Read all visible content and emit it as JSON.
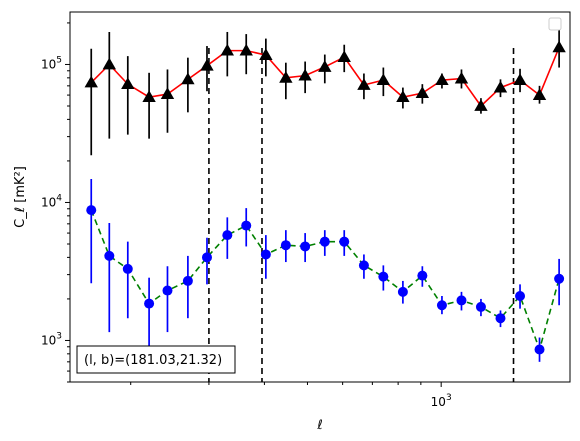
{
  "chart_data": {
    "type": "line",
    "title": "",
    "xlabel": "ℓ",
    "ylabel": "C_ℓ  [mK²]",
    "xscale": "log",
    "yscale": "log",
    "xlim": [
      146,
      1950
    ],
    "ylim": [
      500,
      240000
    ],
    "grid": false,
    "legend": {
      "placement": "top-right",
      "entries": []
    },
    "xticks": [
      {
        "value": 1000,
        "label": "10",
        "exp": "3"
      }
    ],
    "yticks": [
      {
        "value": 1000,
        "label": "10",
        "exp": "3"
      },
      {
        "value": 10000,
        "label": "10",
        "exp": "4"
      },
      {
        "value": 100000,
        "label": "10",
        "exp": "5"
      }
    ],
    "vlines": [
      300,
      395,
      1455
    ],
    "annotation": "(l, b)=(181.03,21.32)",
    "series": [
      {
        "line_color": "#ff0000",
        "marker_color": "#000000",
        "errorbar_color": "#000000",
        "marker": "triangle",
        "line_style": "solid",
        "points": [
          {
            "x": 163,
            "y": 74000,
            "yerr_low": 22000,
            "yerr_high": 130000
          },
          {
            "x": 179,
            "y": 100000,
            "yerr_low": 29000,
            "yerr_high": 172000
          },
          {
            "x": 197,
            "y": 72000,
            "yerr_low": 31000,
            "yerr_high": 115000
          },
          {
            "x": 220,
            "y": 58000,
            "yerr_low": 29000,
            "yerr_high": 87000
          },
          {
            "x": 242,
            "y": 61000,
            "yerr_low": 32000,
            "yerr_high": 92000
          },
          {
            "x": 269,
            "y": 78000,
            "yerr_low": 45000,
            "yerr_high": 112000
          },
          {
            "x": 297,
            "y": 98000,
            "yerr_low": 64000,
            "yerr_high": 136000
          },
          {
            "x": 330,
            "y": 126000,
            "yerr_low": 82000,
            "yerr_high": 172000
          },
          {
            "x": 364,
            "y": 126000,
            "yerr_low": 85000,
            "yerr_high": 166000
          },
          {
            "x": 403,
            "y": 117000,
            "yerr_low": 82000,
            "yerr_high": 154000
          },
          {
            "x": 447,
            "y": 80000,
            "yerr_low": 56000,
            "yerr_high": 103000
          },
          {
            "x": 494,
            "y": 83000,
            "yerr_low": 62000,
            "yerr_high": 105000
          },
          {
            "x": 547,
            "y": 96000,
            "yerr_low": 73000,
            "yerr_high": 118000
          },
          {
            "x": 605,
            "y": 113000,
            "yerr_low": 88000,
            "yerr_high": 139000
          },
          {
            "x": 670,
            "y": 71000,
            "yerr_low": 56000,
            "yerr_high": 86000
          },
          {
            "x": 741,
            "y": 77000,
            "yerr_low": 59000,
            "yerr_high": 95000
          },
          {
            "x": 820,
            "y": 58000,
            "yerr_low": 48000,
            "yerr_high": 68000
          },
          {
            "x": 907,
            "y": 62000,
            "yerr_low": 52000,
            "yerr_high": 72000
          },
          {
            "x": 1004,
            "y": 77000,
            "yerr_low": 67000,
            "yerr_high": 86000
          },
          {
            "x": 1111,
            "y": 79000,
            "yerr_low": 67000,
            "yerr_high": 92000
          },
          {
            "x": 1229,
            "y": 50000,
            "yerr_low": 44000,
            "yerr_high": 57000
          },
          {
            "x": 1360,
            "y": 68000,
            "yerr_low": 58000,
            "yerr_high": 78000
          },
          {
            "x": 1505,
            "y": 77000,
            "yerr_low": 63000,
            "yerr_high": 93000
          },
          {
            "x": 1665,
            "y": 60000,
            "yerr_low": 52000,
            "yerr_high": 70000
          },
          {
            "x": 1843,
            "y": 133000,
            "yerr_low": 95000,
            "yerr_high": 182000
          }
        ]
      },
      {
        "line_color": "#008000",
        "marker_color": "#0000ff",
        "errorbar_color": "#0000ff",
        "marker": "circle",
        "line_style": "dashed",
        "points": [
          {
            "x": 163,
            "y": 8800,
            "yerr_low": 2600,
            "yerr_high": 14800
          },
          {
            "x": 179,
            "y": 4100,
            "yerr_low": 1150,
            "yerr_high": 7100
          },
          {
            "x": 197,
            "y": 3300,
            "yerr_low": 1450,
            "yerr_high": 5200
          },
          {
            "x": 220,
            "y": 1850,
            "yerr_low": 880,
            "yerr_high": 2850
          },
          {
            "x": 242,
            "y": 2300,
            "yerr_low": 1150,
            "yerr_high": 3450
          },
          {
            "x": 269,
            "y": 2700,
            "yerr_low": 1450,
            "yerr_high": 4100
          },
          {
            "x": 297,
            "y": 4000,
            "yerr_low": 2550,
            "yerr_high": 5550
          },
          {
            "x": 330,
            "y": 5800,
            "yerr_low": 3900,
            "yerr_high": 7800
          },
          {
            "x": 364,
            "y": 6800,
            "yerr_low": 4800,
            "yerr_high": 9100
          },
          {
            "x": 403,
            "y": 4200,
            "yerr_low": 2800,
            "yerr_high": 5800
          },
          {
            "x": 447,
            "y": 4900,
            "yerr_low": 3700,
            "yerr_high": 6300
          },
          {
            "x": 494,
            "y": 4800,
            "yerr_low": 3700,
            "yerr_high": 6000
          },
          {
            "x": 547,
            "y": 5200,
            "yerr_low": 4100,
            "yerr_high": 6300
          },
          {
            "x": 605,
            "y": 5200,
            "yerr_low": 4100,
            "yerr_high": 6300
          },
          {
            "x": 670,
            "y": 3500,
            "yerr_low": 2800,
            "yerr_high": 4200
          },
          {
            "x": 741,
            "y": 2900,
            "yerr_low": 2300,
            "yerr_high": 3500
          },
          {
            "x": 820,
            "y": 2250,
            "yerr_low": 1850,
            "yerr_high": 2700
          },
          {
            "x": 907,
            "y": 2950,
            "yerr_low": 2450,
            "yerr_high": 3450
          },
          {
            "x": 1004,
            "y": 1800,
            "yerr_low": 1550,
            "yerr_high": 2100
          },
          {
            "x": 1111,
            "y": 1950,
            "yerr_low": 1650,
            "yerr_high": 2250
          },
          {
            "x": 1229,
            "y": 1750,
            "yerr_low": 1500,
            "yerr_high": 2000
          },
          {
            "x": 1360,
            "y": 1450,
            "yerr_low": 1250,
            "yerr_high": 1650
          },
          {
            "x": 1505,
            "y": 2100,
            "yerr_low": 1700,
            "yerr_high": 2550
          },
          {
            "x": 1665,
            "y": 860,
            "yerr_low": 700,
            "yerr_high": 1050
          },
          {
            "x": 1843,
            "y": 2800,
            "yerr_low": 1800,
            "yerr_high": 3900
          }
        ]
      }
    ]
  }
}
